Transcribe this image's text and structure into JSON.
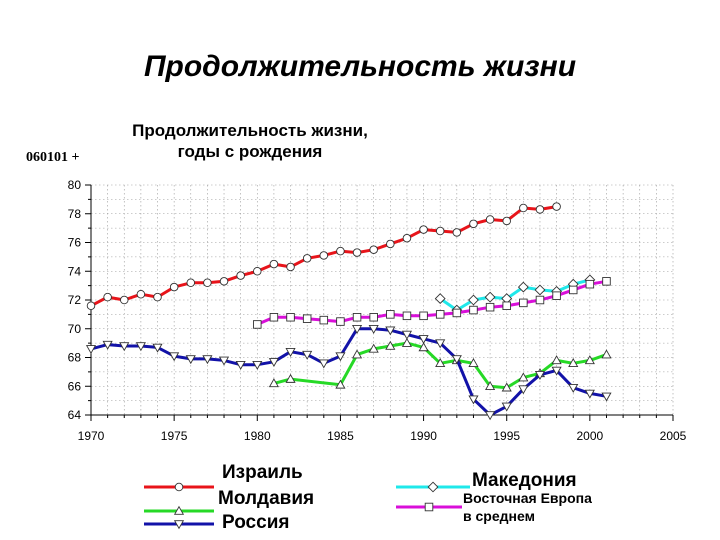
{
  "slide": {
    "title": "Продолжительность жизни",
    "code": "060101 +"
  },
  "chart_data": {
    "type": "line",
    "title_lines": [
      "Продолжительность жизни,",
      "годы с рождения"
    ],
    "xlim": [
      1970,
      2005
    ],
    "ylim": [
      64,
      80
    ],
    "x_ticks": [
      1970,
      1975,
      1980,
      1985,
      1990,
      1995,
      2000,
      2005
    ],
    "y_ticks": [
      64,
      66,
      68,
      70,
      72,
      74,
      76,
      78,
      80
    ],
    "grid": true,
    "legend_position": "bottom",
    "series": [
      {
        "name": "Израиль",
        "color": "#e8141a",
        "marker": "circle",
        "x": [
          1970,
          1971,
          1972,
          1973,
          1974,
          1975,
          1976,
          1977,
          1978,
          1979,
          1980,
          1981,
          1982,
          1983,
          1984,
          1985,
          1986,
          1987,
          1988,
          1989,
          1990,
          1991,
          1992,
          1993,
          1994,
          1995,
          1996,
          1997,
          1998
        ],
        "y": [
          71.6,
          72.2,
          72.0,
          72.4,
          72.2,
          72.9,
          73.2,
          73.2,
          73.3,
          73.7,
          74.0,
          74.5,
          74.3,
          74.9,
          75.1,
          75.4,
          75.3,
          75.5,
          75.9,
          76.3,
          76.9,
          76.8,
          76.7,
          77.3,
          77.6,
          77.5,
          78.4,
          78.3,
          78.5
        ]
      },
      {
        "name": "Молдавия",
        "color": "#26d926",
        "marker": "triangle-up",
        "x": [
          1981,
          1982,
          1985,
          1986,
          1987,
          1988,
          1989,
          1990,
          1991,
          1992,
          1993,
          1994,
          1995,
          1996,
          1997,
          1998,
          1999,
          2000,
          2001
        ],
        "y": [
          66.2,
          66.5,
          66.1,
          68.2,
          68.6,
          68.8,
          69.0,
          68.7,
          67.6,
          67.8,
          67.6,
          66.0,
          65.9,
          66.6,
          66.9,
          67.8,
          67.6,
          67.8,
          68.2
        ]
      },
      {
        "name": "Россия",
        "color": "#1212a8",
        "marker": "triangle-down",
        "x": [
          1970,
          1971,
          1972,
          1973,
          1974,
          1975,
          1976,
          1977,
          1978,
          1979,
          1980,
          1981,
          1982,
          1983,
          1984,
          1985,
          1986,
          1987,
          1988,
          1989,
          1990,
          1991,
          1992,
          1993,
          1994,
          1995,
          1996,
          1997,
          1998,
          1999,
          2000,
          2001
        ],
        "y": [
          68.6,
          68.9,
          68.8,
          68.8,
          68.7,
          68.1,
          67.9,
          67.9,
          67.8,
          67.5,
          67.5,
          67.7,
          68.4,
          68.2,
          67.6,
          68.1,
          70.0,
          70.0,
          69.9,
          69.6,
          69.3,
          69.0,
          67.9,
          65.1,
          64.0,
          64.6,
          65.8,
          66.8,
          67.1,
          65.9,
          65.5,
          65.3
        ]
      },
      {
        "name": "Македония",
        "color": "#1fe8ea",
        "marker": "diamond",
        "x": [
          1991,
          1992,
          1993,
          1994,
          1995,
          1996,
          1997,
          1998,
          1999,
          2000
        ],
        "y": [
          72.1,
          71.3,
          72.0,
          72.2,
          72.1,
          72.9,
          72.7,
          72.6,
          73.1,
          73.4
        ]
      },
      {
        "name": "Восточная Европа в среднем",
        "color": "#d90fd9",
        "marker": "square",
        "name_lines": [
          "Восточная Европа",
          "в среднем"
        ],
        "x": [
          1980,
          1981,
          1982,
          1983,
          1984,
          1985,
          1986,
          1987,
          1988,
          1989,
          1990,
          1991,
          1992,
          1993,
          1994,
          1995,
          1996,
          1997,
          1998,
          1999,
          2000,
          2001
        ],
        "y": [
          70.3,
          70.8,
          70.8,
          70.7,
          70.6,
          70.5,
          70.8,
          70.8,
          71.0,
          70.9,
          70.9,
          71.0,
          71.1,
          71.3,
          71.5,
          71.6,
          71.8,
          72.0,
          72.3,
          72.7,
          73.1,
          73.3
        ]
      }
    ]
  }
}
